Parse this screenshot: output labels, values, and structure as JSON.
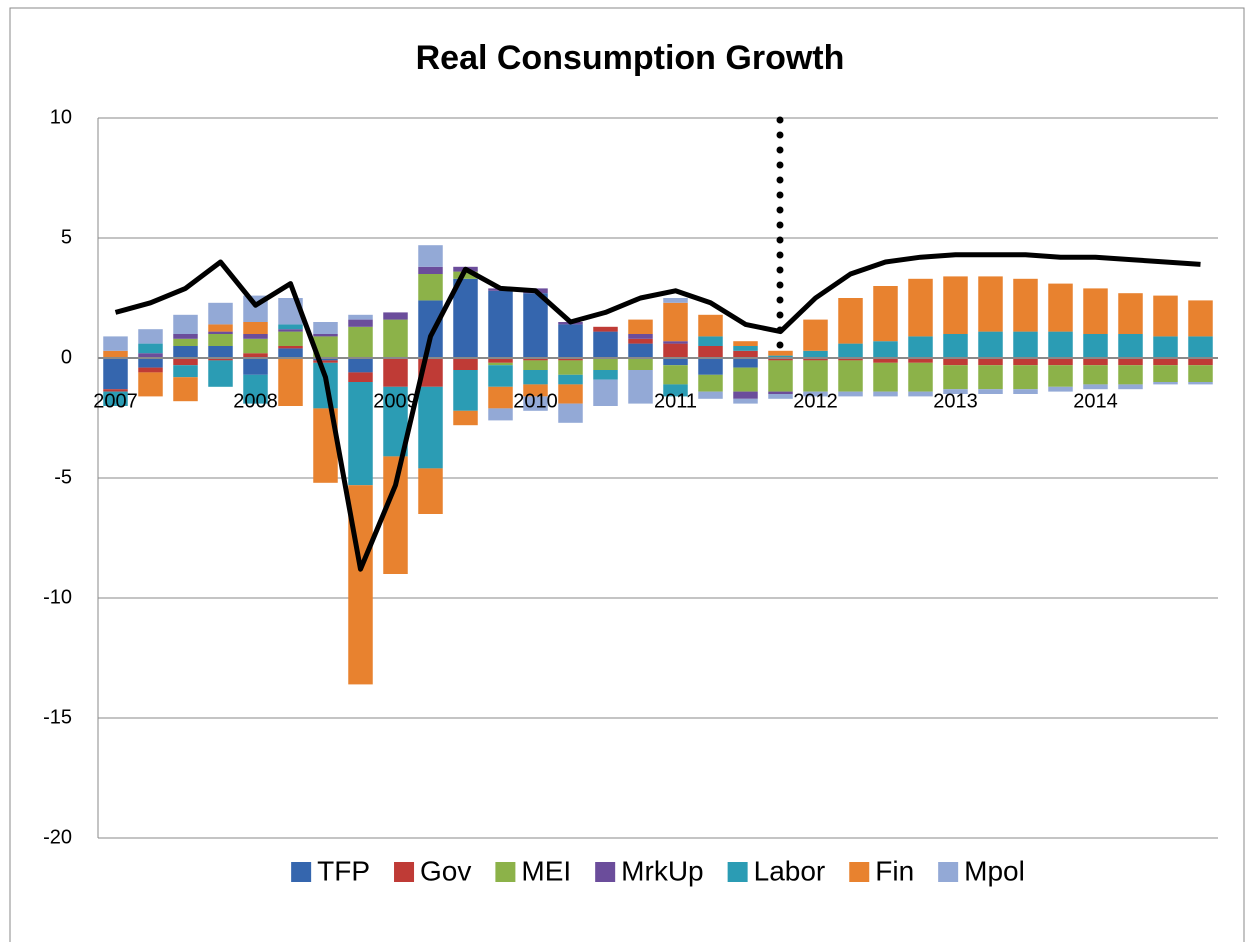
{
  "chart_data": {
    "type": "bar",
    "stacked": true,
    "title": "Real Consumption Growth",
    "categories": [
      "2007",
      null,
      null,
      null,
      "2008",
      null,
      null,
      null,
      "2009",
      null,
      null,
      null,
      "2010",
      null,
      null,
      null,
      "2011",
      null,
      null,
      null,
      "2012",
      null,
      null,
      null,
      "2013",
      null,
      null,
      null,
      "2014",
      null,
      null,
      null
    ],
    "series": [
      {
        "name": "TFP",
        "color": "#3566ae",
        "values": [
          -1.3,
          -0.4,
          0.5,
          0.5,
          -0.7,
          0.4,
          -0.1,
          -0.6,
          0,
          2.4,
          3.3,
          2.8,
          2.7,
          1.4,
          1.1,
          0.6,
          -0.3,
          -0.7,
          -0.4,
          0,
          0,
          0,
          0,
          0,
          0,
          0,
          0,
          0,
          0,
          0,
          0,
          0
        ]
      },
      {
        "name": "Gov",
        "color": "#bf3b36",
        "values": [
          -0.1,
          -0.2,
          -0.3,
          -0.1,
          0.2,
          0.1,
          -0.1,
          -0.4,
          -1.2,
          -1.2,
          -0.5,
          -0.2,
          -0.1,
          -0.1,
          0.2,
          0.2,
          0.6,
          0.5,
          0.3,
          -0.1,
          -0.1,
          -0.1,
          -0.2,
          -0.2,
          -0.3,
          -0.3,
          -0.3,
          -0.3,
          -0.3,
          -0.3,
          -0.3,
          -0.3
        ]
      },
      {
        "name": "MEI",
        "color": "#8cb249",
        "values": [
          0,
          0,
          0.3,
          0.5,
          0.6,
          0.6,
          0.9,
          1.3,
          1.6,
          1.1,
          0.3,
          -0.1,
          -0.4,
          -0.6,
          -0.5,
          -0.5,
          -0.8,
          -0.7,
          -1.0,
          -1.3,
          -1.3,
          -1.3,
          -1.2,
          -1.2,
          -1.0,
          -1.0,
          -1.0,
          -0.9,
          -0.8,
          -0.8,
          -0.7,
          -0.7
        ]
      },
      {
        "name": "MrkUp",
        "color": "#6b4d9b",
        "values": [
          0,
          0.2,
          0.2,
          0.1,
          0.2,
          0.1,
          0.1,
          0.3,
          0.3,
          0.3,
          0.2,
          0.1,
          0.2,
          0.1,
          0,
          0.2,
          0.1,
          0,
          -0.3,
          -0.1,
          0,
          0,
          0,
          0,
          0,
          0,
          0,
          0,
          0,
          0,
          0,
          0
        ]
      },
      {
        "name": "Labor",
        "color": "#2b9cb4",
        "values": [
          -0.6,
          0.4,
          -0.5,
          -1.1,
          -1.2,
          0.2,
          -1.9,
          -4.3,
          -2.9,
          -3.4,
          -1.7,
          -0.9,
          -0.6,
          -0.4,
          -0.4,
          0,
          -0.5,
          0.4,
          0.2,
          0.1,
          0.3,
          0.6,
          0.7,
          0.9,
          1.0,
          1.1,
          1.1,
          1.1,
          1.0,
          1.0,
          0.9,
          0.9
        ]
      },
      {
        "name": "Fin",
        "color": "#e8822f",
        "values": [
          0.3,
          -1.0,
          -1.0,
          0.3,
          0.5,
          -2.0,
          -3.1,
          -8.3,
          -4.9,
          -1.9,
          -0.6,
          -0.9,
          -0.5,
          -0.8,
          0,
          0.6,
          1.6,
          0.9,
          0.2,
          0.2,
          1.3,
          1.9,
          2.3,
          2.4,
          2.4,
          2.3,
          2.2,
          2.0,
          1.9,
          1.7,
          1.7,
          1.5
        ]
      },
      {
        "name": "Mpol",
        "color": "#93a9d6",
        "values": [
          0.6,
          0.6,
          0.8,
          0.9,
          1.1,
          1.1,
          0.5,
          0.2,
          0,
          0.9,
          0,
          -0.5,
          -0.6,
          -0.8,
          -1.1,
          -1.4,
          0.2,
          -0.3,
          -0.2,
          -0.2,
          -0.2,
          -0.2,
          -0.2,
          -0.2,
          -0.2,
          -0.2,
          -0.2,
          -0.2,
          -0.2,
          -0.2,
          -0.1,
          -0.1
        ]
      }
    ],
    "line": {
      "color": "#000000",
      "values": [
        1.9,
        2.3,
        2.9,
        4.0,
        2.2,
        3.1,
        -0.8,
        -8.8,
        -5.3,
        0.9,
        3.7,
        2.9,
        2.8,
        1.5,
        1.9,
        2.5,
        2.8,
        2.3,
        1.4,
        1.1,
        2.5,
        3.5,
        4.0,
        4.2,
        4.3,
        4.3,
        4.3,
        4.2,
        4.2,
        4.1,
        4.0,
        3.9
      ]
    },
    "ylim": [
      -20,
      10
    ],
    "yticks": [
      10,
      5,
      0,
      -5,
      -10,
      -15,
      -20
    ],
    "grid": true,
    "legend": "bottom"
  }
}
